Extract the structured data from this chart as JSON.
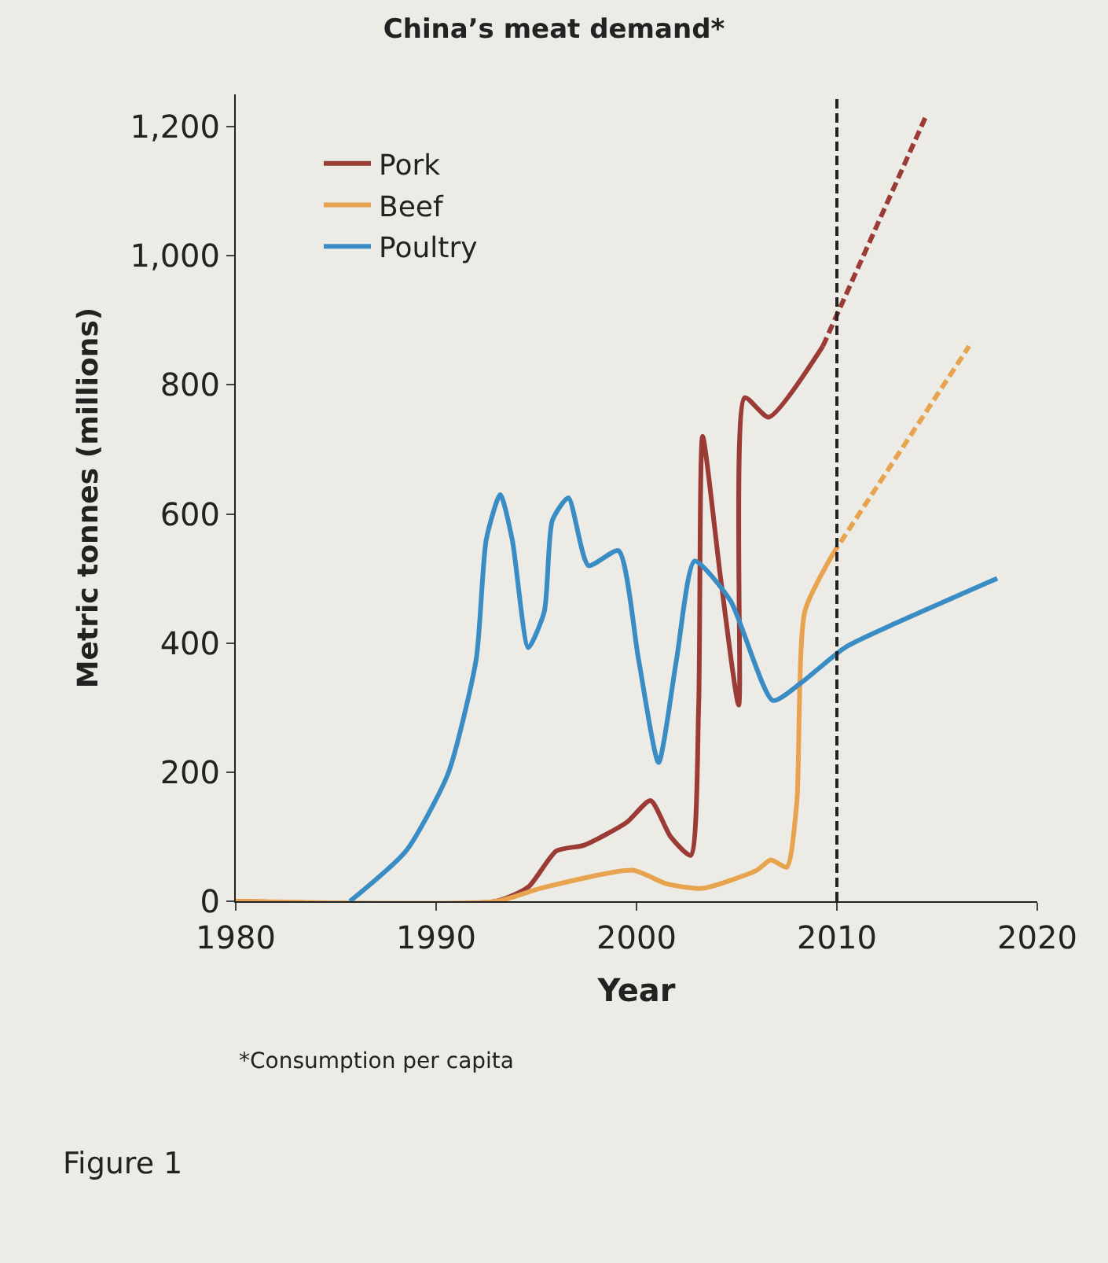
{
  "chart_data": {
    "type": "line",
    "title": "China’s meat demand*",
    "xlabel": "Year",
    "ylabel": "Metric tonnes (millions)",
    "xlim": [
      1980,
      2020
    ],
    "xticks": [
      1980,
      1990,
      2000,
      2010,
      2020
    ],
    "ylim": [
      0,
      1250
    ],
    "yticks": [
      0,
      200,
      400,
      600,
      800,
      {
        "value": 1000,
        "label": "1,000"
      },
      {
        "value": 1200,
        "label": "1,200"
      }
    ],
    "grid": false,
    "legend": "top left",
    "marker": "none",
    "series": [
      {
        "name": "Pork",
        "color": "#9b3b36",
        "line_style": "solid",
        "x": [
          1980,
          1993,
          1994.6,
          1996,
          1997.4,
          1999.5,
          2000.7,
          2001.7,
          2002.7,
          2003.1,
          2003.3,
          2004.2,
          2005.1,
          2005.4,
          2006.6,
          2009.3
        ],
        "values": [
          0,
          0,
          22,
          78,
          87,
          122,
          156,
          100,
          71,
          300,
          720,
          500,
          304,
          780,
          750,
          860
        ]
      },
      {
        "name": "Beef",
        "color": "#e8a34e",
        "line_style": "solid",
        "x": [
          1980,
          1993,
          1995.2,
          1999.8,
          2001.5,
          2003.3,
          2006,
          2006.7,
          2007.5,
          2008,
          2008.4,
          2009.8
        ],
        "values": [
          0,
          0,
          20,
          48,
          27,
          20,
          48,
          64,
          53,
          153,
          449,
          538
        ]
      },
      {
        "name": "Poultry",
        "color": "#3a8cc4",
        "line_style": "solid",
        "x": [
          1985.7,
          1988.5,
          1990.6,
          1992,
          1992.5,
          1993.2,
          1993.8,
          1994.6,
          1995.4,
          1995.8,
          1996.6,
          1997.6,
          1999.1,
          2000.1,
          2001.1,
          2002,
          2002.9,
          2004.7,
          2006.8,
          2008.2,
          2010.4,
          2013.1,
          2018
        ],
        "values": [
          0,
          78,
          198,
          375,
          560,
          630,
          560,
          393,
          449,
          590,
          625,
          520,
          543,
          375,
          215,
          375,
          527,
          465,
          311,
          338,
          393,
          433,
          500
        ]
      },
      {
        "color": "#9b3b36",
        "line_style": "dashed",
        "x": [
          2009.3,
          2014.5
        ],
        "values": [
          860,
          1220
        ]
      },
      {
        "color": "#e8a34e",
        "line_style": "dashed",
        "x": [
          2009.8,
          2016.6
        ],
        "values": [
          538,
          860
        ]
      }
    ],
    "ref_lines": [
      {
        "axis": "x",
        "value": 2010,
        "color": "#222222",
        "line_style": "dashed"
      }
    ],
    "annotations": [
      "*Consumption per capita",
      "Figure 1"
    ]
  }
}
